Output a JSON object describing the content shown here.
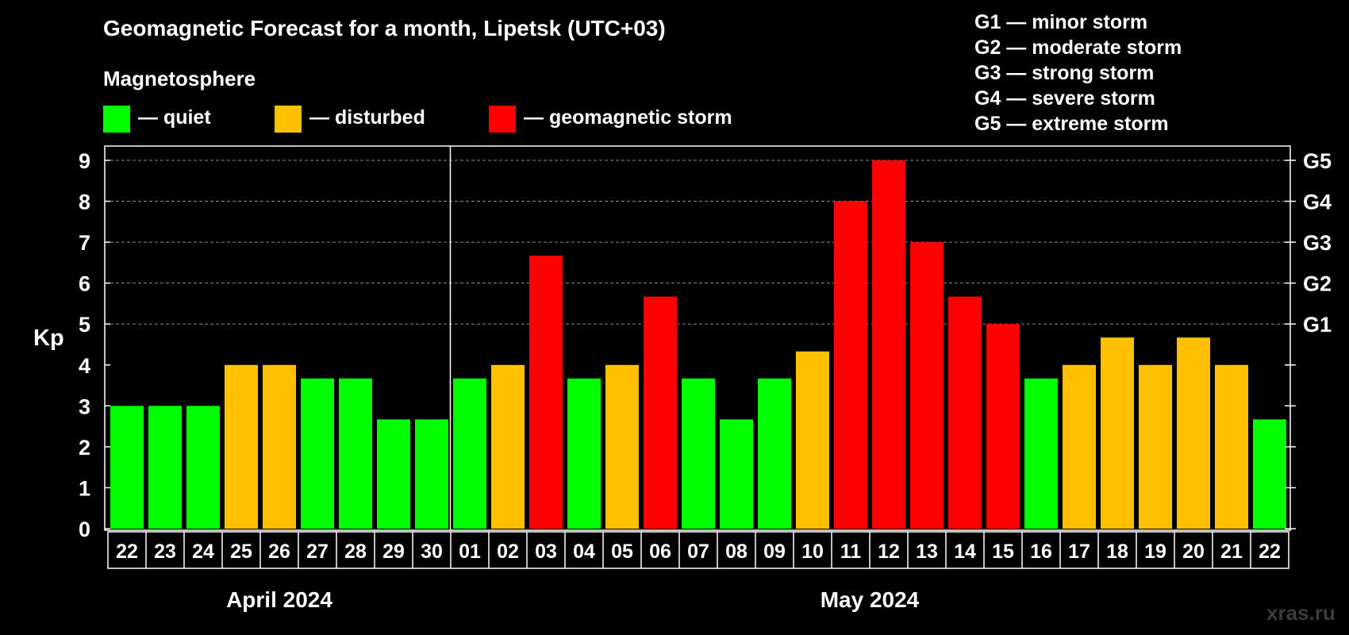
{
  "chart_data": {
    "type": "bar",
    "title": "Geomagnetic Forecast for a month, Lipetsk (UTC+03)",
    "ylabel": "Kp",
    "ylim": [
      0,
      9
    ],
    "y_ticks": [
      "0",
      "1",
      "2",
      "3",
      "4",
      "5",
      "6",
      "7",
      "8",
      "9"
    ],
    "right_axis_ticks": [
      {
        "value": 5,
        "label": "G1"
      },
      {
        "value": 6,
        "label": "G2"
      },
      {
        "value": 7,
        "label": "G3"
      },
      {
        "value": 8,
        "label": "G4"
      },
      {
        "value": 9,
        "label": "G5"
      }
    ],
    "grid": "dashed horizontal lines at 5, 6, 7, 8, 9",
    "categories": [
      "22",
      "23",
      "24",
      "25",
      "26",
      "27",
      "28",
      "29",
      "30",
      "01",
      "02",
      "03",
      "04",
      "05",
      "06",
      "07",
      "08",
      "09",
      "10",
      "11",
      "12",
      "13",
      "14",
      "15",
      "16",
      "17",
      "18",
      "19",
      "20",
      "21",
      "22"
    ],
    "values": [
      3.0,
      3.0,
      3.0,
      4.0,
      4.0,
      3.67,
      3.67,
      2.67,
      2.67,
      3.67,
      4.0,
      6.67,
      3.67,
      4.0,
      5.67,
      3.67,
      2.67,
      3.67,
      4.33,
      8.0,
      9.0,
      7.0,
      5.67,
      5.0,
      3.67,
      4.0,
      4.67,
      4.0,
      4.67,
      4.0,
      2.67
    ],
    "levels": [
      "quiet",
      "quiet",
      "quiet",
      "disturbed",
      "disturbed",
      "quiet",
      "quiet",
      "quiet",
      "quiet",
      "quiet",
      "disturbed",
      "storm",
      "quiet",
      "disturbed",
      "storm",
      "quiet",
      "quiet",
      "quiet",
      "disturbed",
      "storm",
      "storm",
      "storm",
      "storm",
      "storm",
      "quiet",
      "disturbed",
      "disturbed",
      "disturbed",
      "disturbed",
      "disturbed",
      "quiet"
    ],
    "months": [
      {
        "label": "April 2024",
        "start_index": 0,
        "end_index": 8
      },
      {
        "label": "May 2024",
        "start_index": 9,
        "end_index": 30
      }
    ],
    "colors": {
      "quiet": "#00ff00",
      "disturbed": "#ffc000",
      "storm": "#ff0000",
      "background": "#000000",
      "axis": "#ffffff",
      "grid": "#8c8c8c"
    }
  },
  "legend": {
    "heading": "Magnetosphere",
    "items": [
      {
        "key": "quiet",
        "label": "— quiet"
      },
      {
        "key": "disturbed",
        "label": "— disturbed"
      },
      {
        "key": "storm",
        "label": "— geomagnetic storm"
      }
    ]
  },
  "storm_scale": [
    "G1 — minor storm",
    "G2 — moderate storm",
    "G3 — strong storm",
    "G4 — severe storm",
    "G5 — extreme storm"
  ],
  "watermark": "xras.ru"
}
